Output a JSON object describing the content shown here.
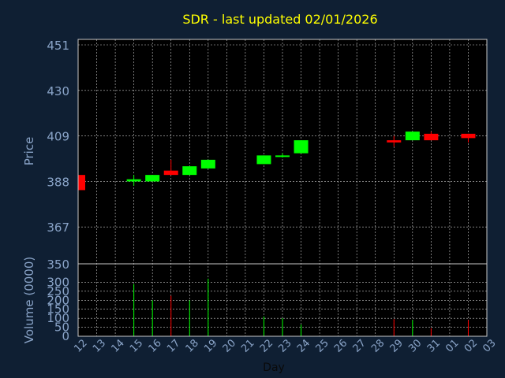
{
  "chart_data": {
    "type": "candlestick",
    "title": "SDR - last updated 02/01/2026",
    "xlabel": "Day",
    "price_ylabel": "Price",
    "volume_ylabel": "Volume (0000)",
    "price_ylim": [
      350,
      451
    ],
    "price_yticks": [
      451,
      430,
      409,
      388,
      367,
      350
    ],
    "volume_ylim": [
      0,
      350
    ],
    "volume_yticks": [
      350,
      300,
      250,
      200,
      150,
      100,
      50,
      0
    ],
    "x_ticks": [
      "12",
      "13",
      "14",
      "15",
      "16",
      "17",
      "18",
      "19",
      "20",
      "21",
      "22",
      "23",
      "24",
      "25",
      "26",
      "27",
      "28",
      "29",
      "30",
      "31",
      "01",
      "02",
      "03"
    ],
    "grid": true,
    "colors": {
      "up": "#00ff00",
      "down": "#ff0000",
      "title": "#ffff00",
      "axis_text": "#8aa4c8",
      "grid": "#c8c8c8",
      "plot_bg": "#000000",
      "page_bg": "#0f1f33"
    },
    "candles": [
      {
        "x": "12",
        "open": 391,
        "close": 384,
        "high": 391,
        "low": 384,
        "volume": 0
      },
      {
        "x": "15",
        "open": 388,
        "close": 389,
        "high": 391,
        "low": 386,
        "volume": 290
      },
      {
        "x": "16",
        "open": 388,
        "close": 391,
        "high": 391,
        "low": 388,
        "volume": 200
      },
      {
        "x": "17",
        "open": 393,
        "close": 391,
        "high": 398,
        "low": 391,
        "volume": 225
      },
      {
        "x": "18",
        "open": 391,
        "close": 395,
        "high": 395,
        "low": 391,
        "volume": 200
      },
      {
        "x": "19",
        "open": 394,
        "close": 398,
        "high": 398,
        "low": 394,
        "volume": 320
      },
      {
        "x": "22",
        "open": 396,
        "close": 400,
        "high": 400,
        "low": 396,
        "volume": 110
      },
      {
        "x": "23",
        "open": 400,
        "close": 400,
        "high": 401,
        "low": 399,
        "volume": 100
      },
      {
        "x": "24",
        "open": 401,
        "close": 407,
        "high": 407,
        "low": 401,
        "volume": 65
      },
      {
        "x": "29",
        "open": 407,
        "close": 406,
        "high": 409,
        "low": 404,
        "volume": 95
      },
      {
        "x": "30",
        "open": 407,
        "close": 411,
        "high": 411,
        "low": 407,
        "volume": 90
      },
      {
        "x": "31",
        "open": 410,
        "close": 407,
        "high": 411,
        "low": 407,
        "volume": 45
      },
      {
        "x": "02",
        "open": 410,
        "close": 408,
        "high": 410,
        "low": 406,
        "volume": 90
      }
    ]
  }
}
